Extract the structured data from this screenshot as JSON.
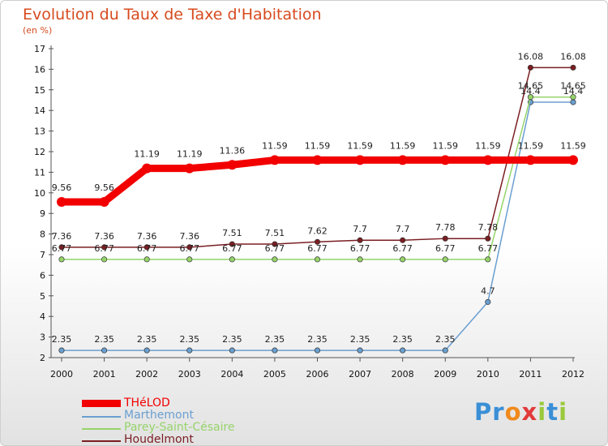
{
  "title": "Evolution du Taux de Taxe d'Habitation",
  "subtitle": "(en %)",
  "logo": {
    "letters": [
      "P",
      "r",
      "o",
      "x",
      "i",
      "t",
      "i"
    ],
    "colors": [
      "#3a8fd6",
      "#3a8fd6",
      "#f08a1c",
      "#e23a3a",
      "#9ac93c",
      "#3a8fd6",
      "#9ac93c"
    ]
  },
  "chart_data": {
    "type": "line",
    "title": "Evolution du Taux de Taxe d'Habitation",
    "ylabel": "(en %)",
    "ylim": [
      2,
      17
    ],
    "y_ticks": [
      2,
      3,
      4,
      5,
      6,
      7,
      8,
      9,
      10,
      11,
      12,
      13,
      14,
      15,
      16,
      17
    ],
    "x": [
      "2000",
      "2001",
      "2002",
      "2003",
      "2004",
      "2005",
      "2006",
      "2007",
      "2008",
      "2009",
      "2010",
      "2011",
      "2012"
    ],
    "grid": "none",
    "legend_position": "bottom-left",
    "series": [
      {
        "name": "Marthemont",
        "color": "#6a9fd0",
        "values": [
          2.35,
          2.35,
          2.35,
          2.35,
          2.35,
          2.35,
          2.35,
          2.35,
          2.35,
          2.35,
          4.7,
          14.4,
          14.4
        ],
        "labels": [
          "2.35",
          "2.35",
          "2.35",
          "2.35",
          "2.35",
          "2.35",
          "2.35",
          "2.35",
          "2.35",
          "2.35",
          "4.7",
          "14.4",
          "14.4"
        ]
      },
      {
        "name": "Parey-Saint-Césaire",
        "color": "#96d46a",
        "values": [
          6.77,
          6.77,
          6.77,
          6.77,
          6.77,
          6.77,
          6.77,
          6.77,
          6.77,
          6.77,
          6.77,
          14.65,
          14.65
        ],
        "labels": [
          "6.77",
          "6.77",
          "6.77",
          "6.77",
          "6.77",
          "6.77",
          "6.77",
          "6.77",
          "6.77",
          "6.77",
          "6.77",
          "14.65",
          "14.65"
        ]
      },
      {
        "name": "Houdelmont",
        "color": "#7a1e22",
        "values": [
          7.36,
          7.36,
          7.36,
          7.36,
          7.51,
          7.51,
          7.62,
          7.7,
          7.7,
          7.78,
          7.78,
          16.08,
          16.08
        ],
        "labels": [
          "7.36",
          "7.36",
          "7.36",
          "7.36",
          "7.51",
          "7.51",
          "7.62",
          "7.7",
          "7.7",
          "7.78",
          "7.78",
          "16.08",
          "16.08"
        ]
      },
      {
        "name": "THéLOD",
        "color": "#f20000",
        "values": [
          9.56,
          9.56,
          11.19,
          11.19,
          11.36,
          11.59,
          11.59,
          11.59,
          11.59,
          11.59,
          11.59,
          11.59,
          11.59
        ],
        "labels": [
          "9.56",
          "9.56",
          "11.19",
          "11.19",
          "11.36",
          "11.59",
          "11.59",
          "11.59",
          "11.59",
          "11.59",
          "11.59",
          "11.59",
          "11.59"
        ]
      }
    ],
    "legend": [
      {
        "name": "THéLOD",
        "color": "#f20000"
      },
      {
        "name": "Marthemont",
        "color": "#6a9fd0"
      },
      {
        "name": "Parey-Saint-Césaire",
        "color": "#96d46a"
      },
      {
        "name": "Houdelmont",
        "color": "#7a1e22"
      }
    ]
  }
}
